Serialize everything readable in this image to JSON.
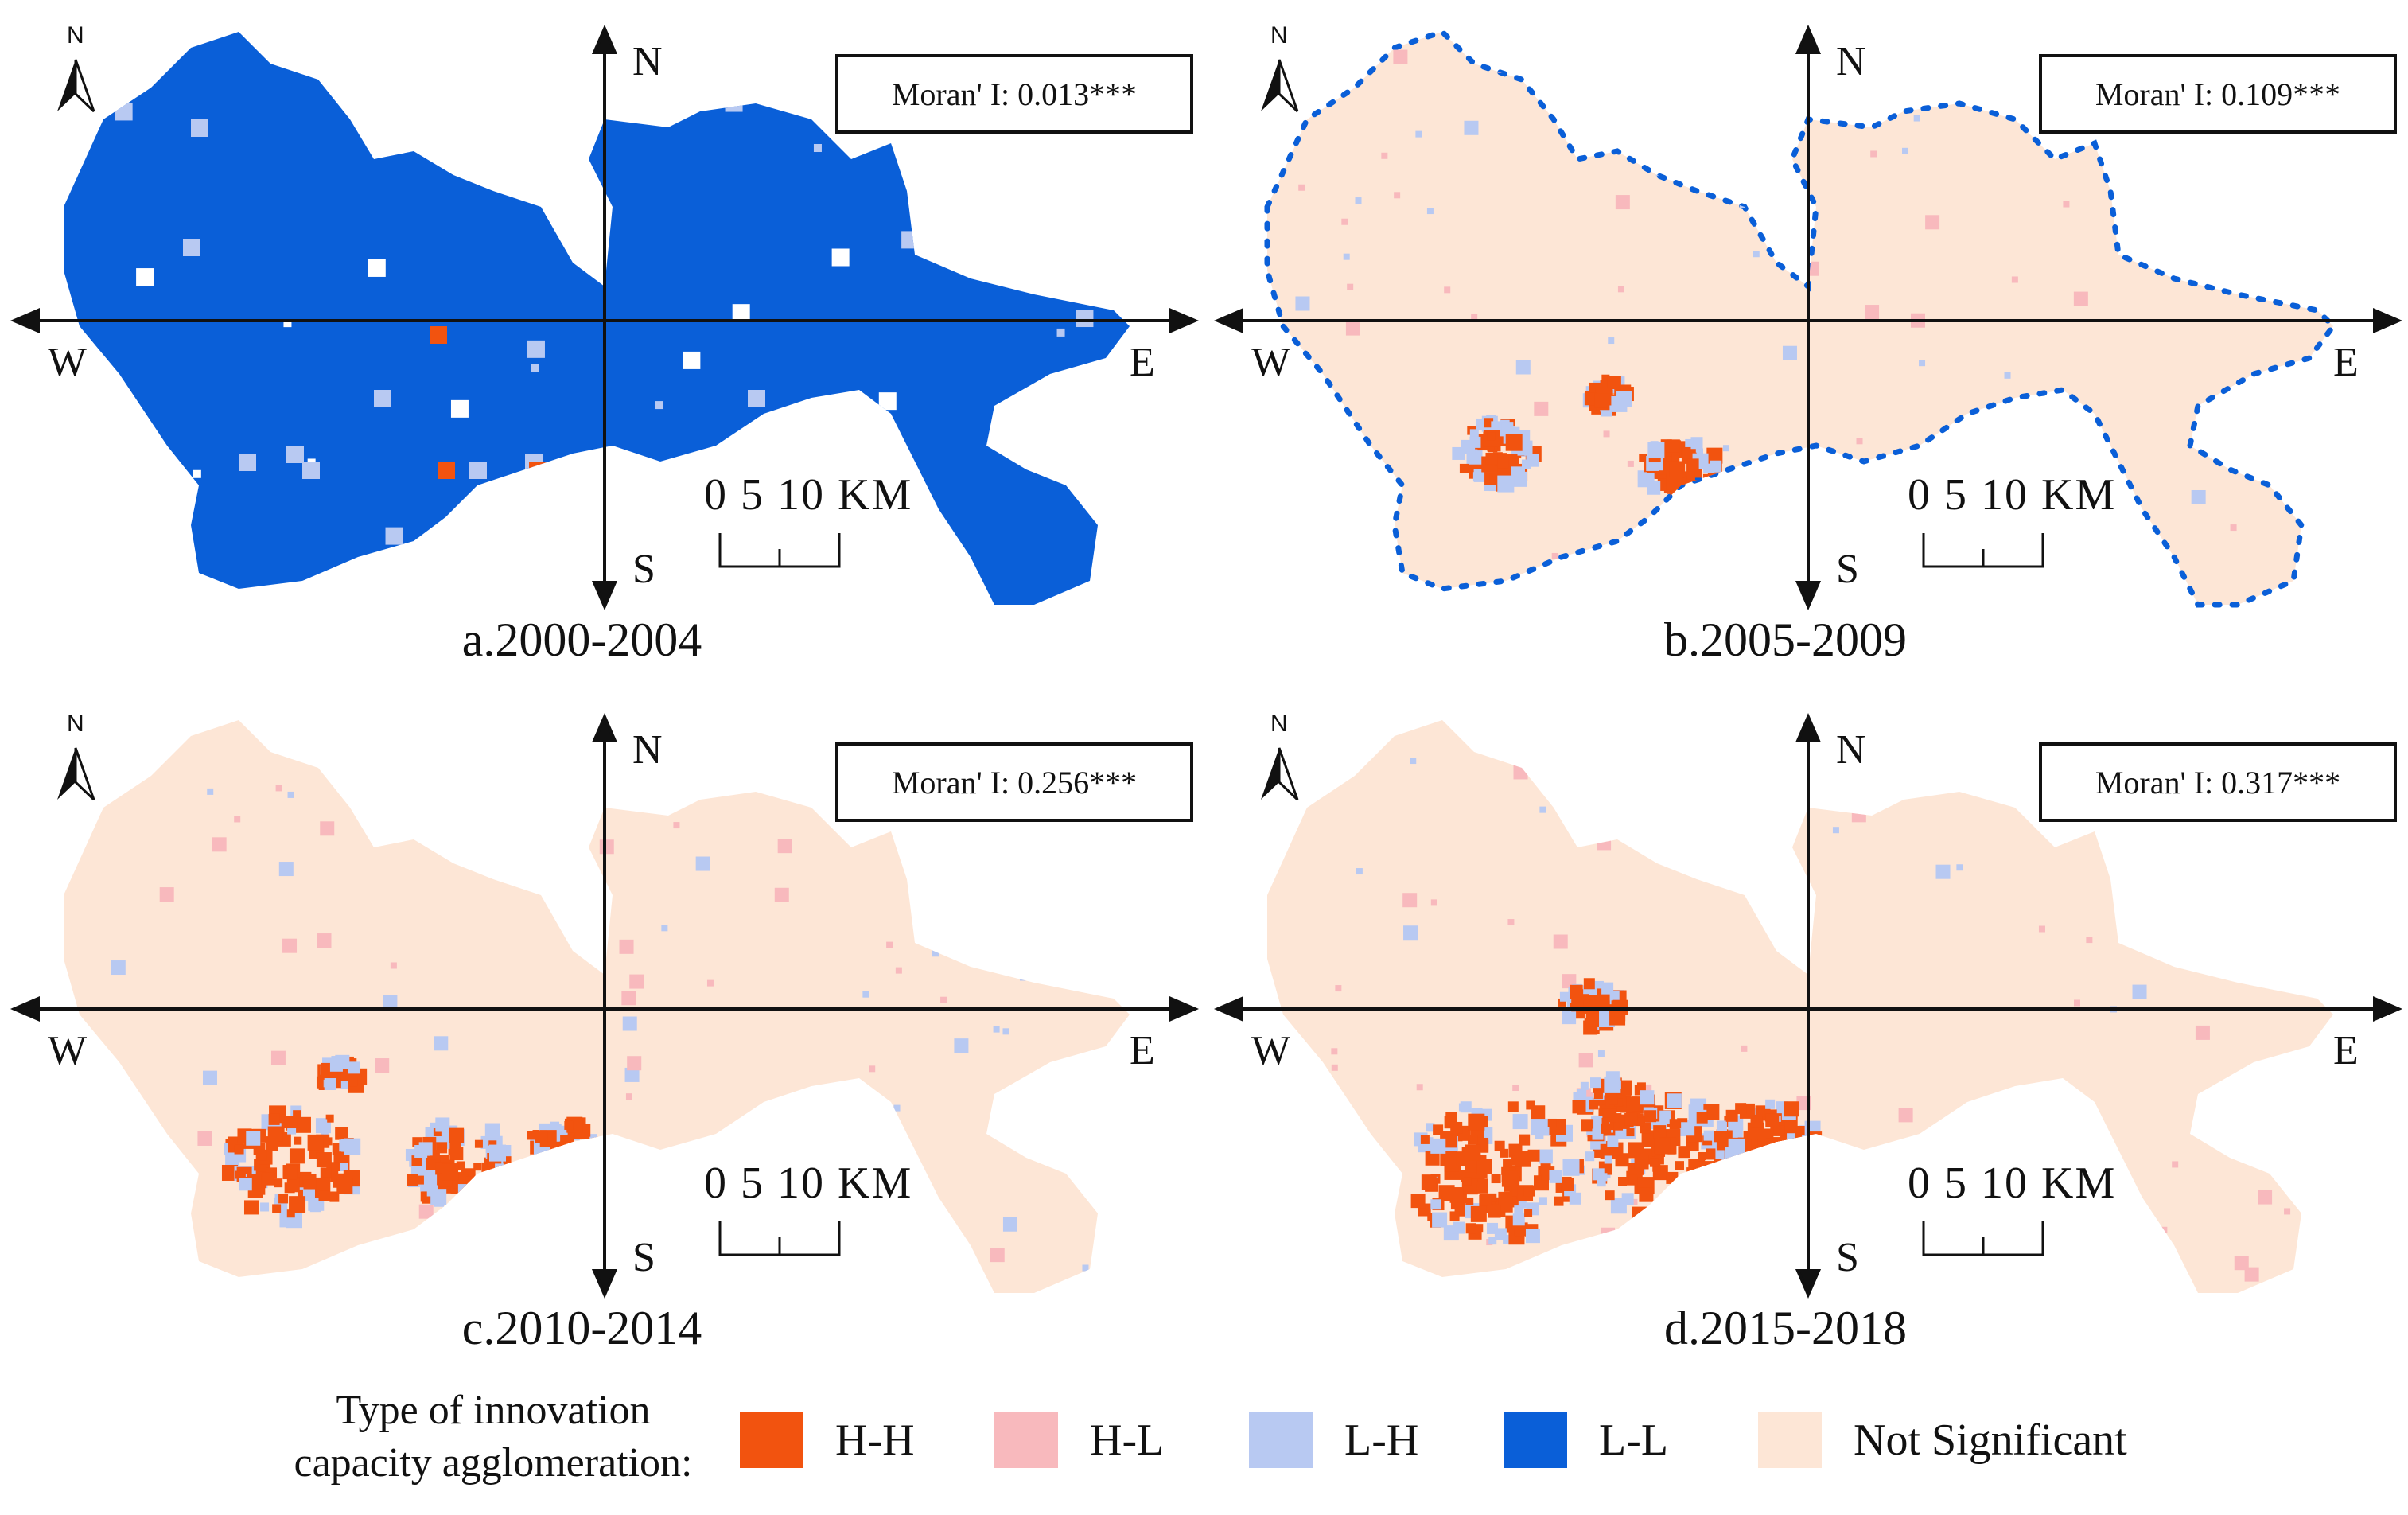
{
  "colors": {
    "HH": "#f2530f",
    "HL": "#f8b9bd",
    "LH": "#b8c9f2",
    "LL": "#0a5fd8",
    "NS": "#fde6d6"
  },
  "directions": {
    "north": "N",
    "south": "S",
    "west": "W",
    "east": "E"
  },
  "north_arrow_label": "N",
  "scale_bar": {
    "label": "0   5  10  KM"
  },
  "panels": [
    {
      "caption": "a.2000-2004",
      "moran": "Moran' I: 0.013***",
      "base": "LL",
      "dotted_boundary": false,
      "hotspots": "none"
    },
    {
      "caption": "b.2005-2009",
      "moran": "Moran' I: 0.109***",
      "base": "NS",
      "dotted_boundary": true,
      "hotspots": "low"
    },
    {
      "caption": "c.2010-2014",
      "moran": "Moran' I: 0.256***",
      "base": "NS",
      "dotted_boundary": false,
      "hotspots": "mid"
    },
    {
      "caption": "d.2015-2018",
      "moran": "Moran' I: 0.317***",
      "base": "NS",
      "dotted_boundary": false,
      "hotspots": "high"
    }
  ],
  "legend": {
    "title_line1": "Type of innovation",
    "title_line2": "capacity agglomeration:",
    "items": [
      {
        "label": "H-H",
        "color_key": "HH"
      },
      {
        "label": "H-L",
        "color_key": "HL"
      },
      {
        "label": "L-H",
        "color_key": "LH"
      },
      {
        "label": "L-L",
        "color_key": "LL"
      },
      {
        "label": "Not Significant",
        "color_key": "NS"
      }
    ]
  }
}
